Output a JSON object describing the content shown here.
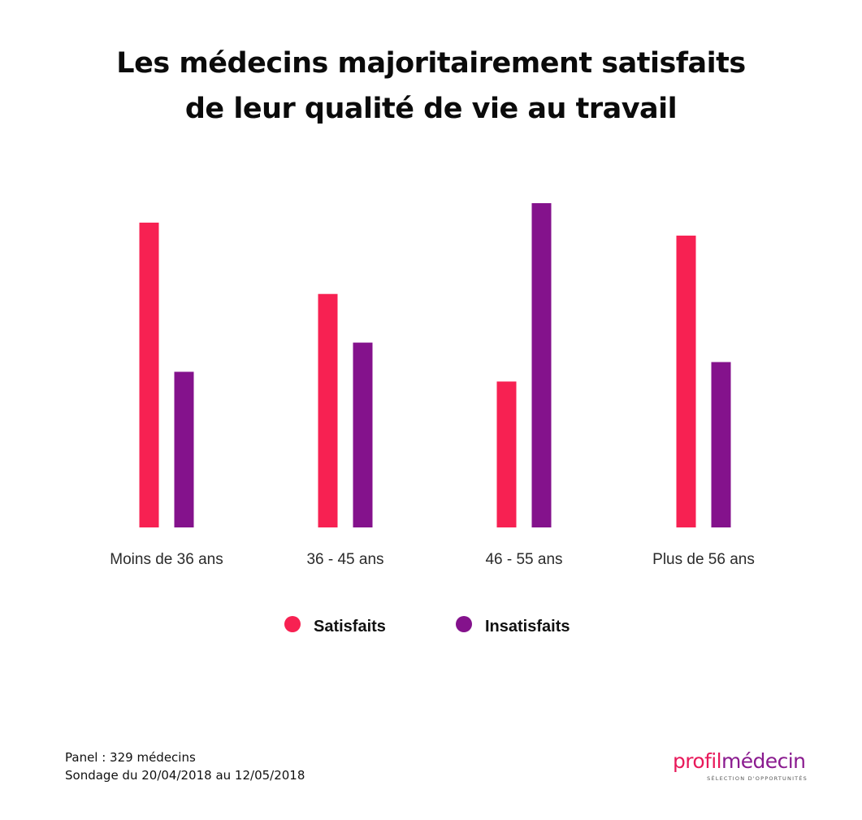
{
  "title": {
    "line1": "Les médecins majoritairement satisfaits",
    "line2": "de leur qualité de vie au travail"
  },
  "chart_data": {
    "type": "bar",
    "categories": [
      "Moins de 36 ans",
      "36 - 45 ans",
      "46 - 55 ans",
      "Plus de 56 ans"
    ],
    "series": [
      {
        "name": "Satisfaits",
        "color": "#f72152",
        "values": [
          94,
          72,
          45,
          90
        ]
      },
      {
        "name": "Insatisfaits",
        "color": "#84128c",
        "values": [
          48,
          57,
          100,
          51
        ]
      }
    ],
    "ylim": [
      0,
      100
    ],
    "grid": false,
    "legend_position": "bottom"
  },
  "legend": [
    {
      "label": "Satisfaits",
      "color": "#f72152"
    },
    {
      "label": "Insatisfaits",
      "color": "#84128c"
    }
  ],
  "footnote": {
    "line1": "Panel : 329 médecins",
    "line2": "Sondage du 20/04/2018 au 12/05/2018"
  },
  "logo": {
    "part1": "profil",
    "part2": "médecin",
    "tagline": "SÉLECTION D'OPPORTUNITÉS",
    "color1": "#e8195a",
    "color2": "#8a1b8f"
  }
}
